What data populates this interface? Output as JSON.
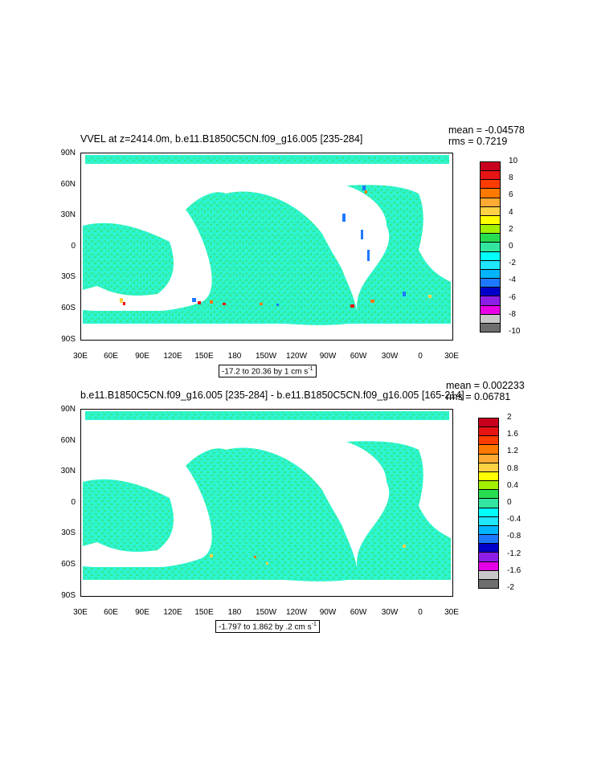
{
  "panels": [
    {
      "title": "VVEL at z=2414.0m, b.e11.B1850C5CN.f09_g16.005 [235-284]",
      "mean": "mean = -0.04578",
      "rms": "rms = 0.7219",
      "range_text": "-17.2 to 20.36 by 1 cm s",
      "range_unit_sup": "-1",
      "colorbar_labels": [
        "10",
        "8",
        "6",
        "4",
        "2",
        "0",
        "-2",
        "-4",
        "-6",
        "-8",
        "-10"
      ],
      "colorbar_colors": [
        "#c8001e",
        "#e61414",
        "#ff3c00",
        "#ff7800",
        "#ffaa32",
        "#ffd246",
        "#ffff00",
        "#a0f000",
        "#28dc50",
        "#32e6a0",
        "#00ffff",
        "#1ee6ff",
        "#00b4ff",
        "#1e78ff",
        "#0000c8",
        "#8c1ee6",
        "#e600e6",
        "#c8c8c8",
        "#6e6e6e"
      ],
      "dominant_ocean_color": "#2cf5d0"
    },
    {
      "title": "b.e11.B1850C5CN.f09_g16.005 [235-284] - b.e11.B1850C5CN.f09_g16.005 [165-214]",
      "mean": "mean = 0.002233",
      "rms": "rms = 0.06781",
      "range_text": "-1.797 to 1.862 by .2 cm s",
      "range_unit_sup": "-1",
      "colorbar_labels": [
        "2",
        "1.6",
        "1.2",
        "0.8",
        "0.4",
        "0",
        "-0.4",
        "-0.8",
        "-1.2",
        "-1.6",
        "-2"
      ],
      "colorbar_colors": [
        "#c8001e",
        "#e61414",
        "#ff3c00",
        "#ff7800",
        "#ffaa32",
        "#ffd246",
        "#ffff00",
        "#a0f000",
        "#28dc50",
        "#32e6a0",
        "#00ffff",
        "#1ee6ff",
        "#00b4ff",
        "#1e78ff",
        "#0000c8",
        "#8c1ee6",
        "#e600e6",
        "#c8c8c8",
        "#6e6e6e"
      ],
      "dominant_ocean_color": "#2cf5d0"
    }
  ],
  "axes": {
    "lat_labels": [
      "90N",
      "60N",
      "30N",
      "0",
      "30S",
      "60S",
      "90S"
    ],
    "lon_labels": [
      "30E",
      "60E",
      "90E",
      "120E",
      "150E",
      "180",
      "150W",
      "120W",
      "90W",
      "60W",
      "30W",
      "0",
      "30E"
    ]
  }
}
